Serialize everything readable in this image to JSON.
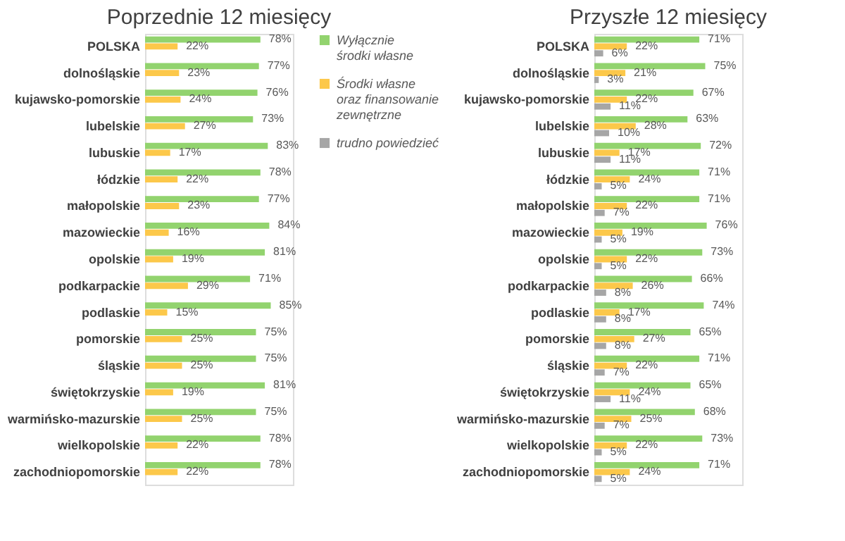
{
  "chart_data": [
    {
      "type": "bar",
      "orientation": "horizontal",
      "title": "Poprzednie 12 miesięcy",
      "xlim": [
        0,
        100
      ],
      "tick_labels": "y",
      "legend": "right",
      "categories": [
        "POLSKA",
        "dolnośląskie",
        "kujawsko-pomorskie",
        "lubelskie",
        "lubuskie",
        "łódzkie",
        "małopolskie",
        "mazowieckie",
        "opolskie",
        "podkarpackie",
        "podlaskie",
        "pomorskie",
        "śląskie",
        "świętokrzyskie",
        "warmińsko-mazurskie",
        "wielkopolskie",
        "zachodniopomorskie"
      ],
      "series": [
        {
          "name": "Wyłącznie środki własne",
          "color": "#92d36e",
          "values": [
            78,
            77,
            76,
            73,
            83,
            78,
            77,
            84,
            81,
            71,
            85,
            75,
            75,
            81,
            75,
            78,
            78
          ],
          "value_labels": [
            "78%",
            "77%",
            "76%",
            "73%",
            "83%",
            "78%",
            "77%",
            "84%",
            "81%",
            "71%",
            "85%",
            "75%",
            "75%",
            "81%",
            "75%",
            "78%",
            "78%"
          ]
        },
        {
          "name": "Środki własne oraz finansowanie zewnętrzne",
          "color": "#fcc84a",
          "values": [
            22,
            23,
            24,
            27,
            17,
            22,
            23,
            16,
            19,
            29,
            15,
            25,
            25,
            19,
            25,
            22,
            22
          ],
          "value_labels": [
            "22%",
            "23%",
            "24%",
            "27%",
            "17%",
            "22%",
            "23%",
            "16%",
            "19%",
            "29%",
            "15%",
            "25%",
            "25%",
            "19%",
            "25%",
            "22%",
            "22%"
          ]
        },
        {
          "name": "trudno powiedzieć",
          "color": "#a6a6a6",
          "values": [
            null,
            null,
            null,
            null,
            null,
            null,
            null,
            null,
            null,
            null,
            null,
            null,
            null,
            null,
            null,
            null,
            null
          ]
        }
      ]
    },
    {
      "type": "bar",
      "orientation": "horizontal",
      "title": "Przyszłe 12 miesięcy",
      "xlim": [
        0,
        100
      ],
      "tick_labels": "y",
      "legend": false,
      "categories": [
        "POLSKA",
        "dolnośląskie",
        "kujawsko-pomorskie",
        "lubelskie",
        "lubuskie",
        "łódzkie",
        "małopolskie",
        "mazowieckie",
        "opolskie",
        "podkarpackie",
        "podlaskie",
        "pomorskie",
        "śląskie",
        "świętokrzyskie",
        "warmińsko-mazurskie",
        "wielkopolskie",
        "zachodniopomorskie"
      ],
      "series": [
        {
          "color": "#92d36e",
          "values": [
            71,
            75,
            67,
            63,
            72,
            71,
            71,
            76,
            73,
            66,
            74,
            65,
            71,
            65,
            68,
            73,
            71
          ],
          "value_labels": [
            "71%",
            "75%",
            "67%",
            "63%",
            "72%",
            "71%",
            "71%",
            "76%",
            "73%",
            "66%",
            "74%",
            "65%",
            "71%",
            "65%",
            "68%",
            "73%",
            "71%"
          ]
        },
        {
          "color": "#fcc84a",
          "values": [
            22,
            21,
            22,
            28,
            17,
            24,
            22,
            19,
            22,
            26,
            17,
            27,
            22,
            24,
            25,
            22,
            24
          ],
          "value_labels": [
            "22%",
            "21%",
            "22%",
            "28%",
            "17%",
            "24%",
            "22%",
            "19%",
            "22%",
            "26%",
            "17%",
            "27%",
            "22%",
            "24%",
            "25%",
            "22%",
            "24%"
          ]
        },
        {
          "color": "#a6a6a6",
          "values": [
            6,
            3,
            11,
            10,
            11,
            5,
            7,
            5,
            5,
            8,
            8,
            8,
            7,
            11,
            7,
            5,
            5
          ],
          "value_labels": [
            "6%",
            "3%",
            "11%",
            "10%",
            "11%",
            "5%",
            "7%",
            "5%",
            "5%",
            "8%",
            "8%",
            "8%",
            "7%",
            "11%",
            "7%",
            "5%",
            "5%"
          ]
        }
      ]
    }
  ]
}
